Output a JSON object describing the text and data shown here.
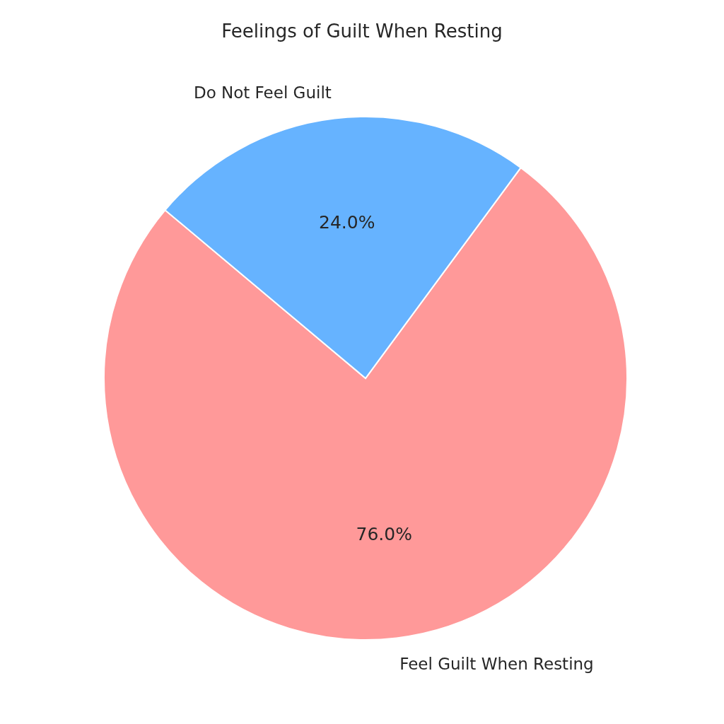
{
  "chart_data": {
    "type": "pie",
    "title": "Feelings of Guilt When Resting",
    "categories": [
      "Feel Guilt When Resting",
      "Do Not Feel Guilt"
    ],
    "values": [
      76,
      24
    ],
    "colors": [
      "#ff9999",
      "#66b3ff"
    ],
    "value_labels": [
      "76.0%",
      "24.0%"
    ],
    "legend": false
  }
}
